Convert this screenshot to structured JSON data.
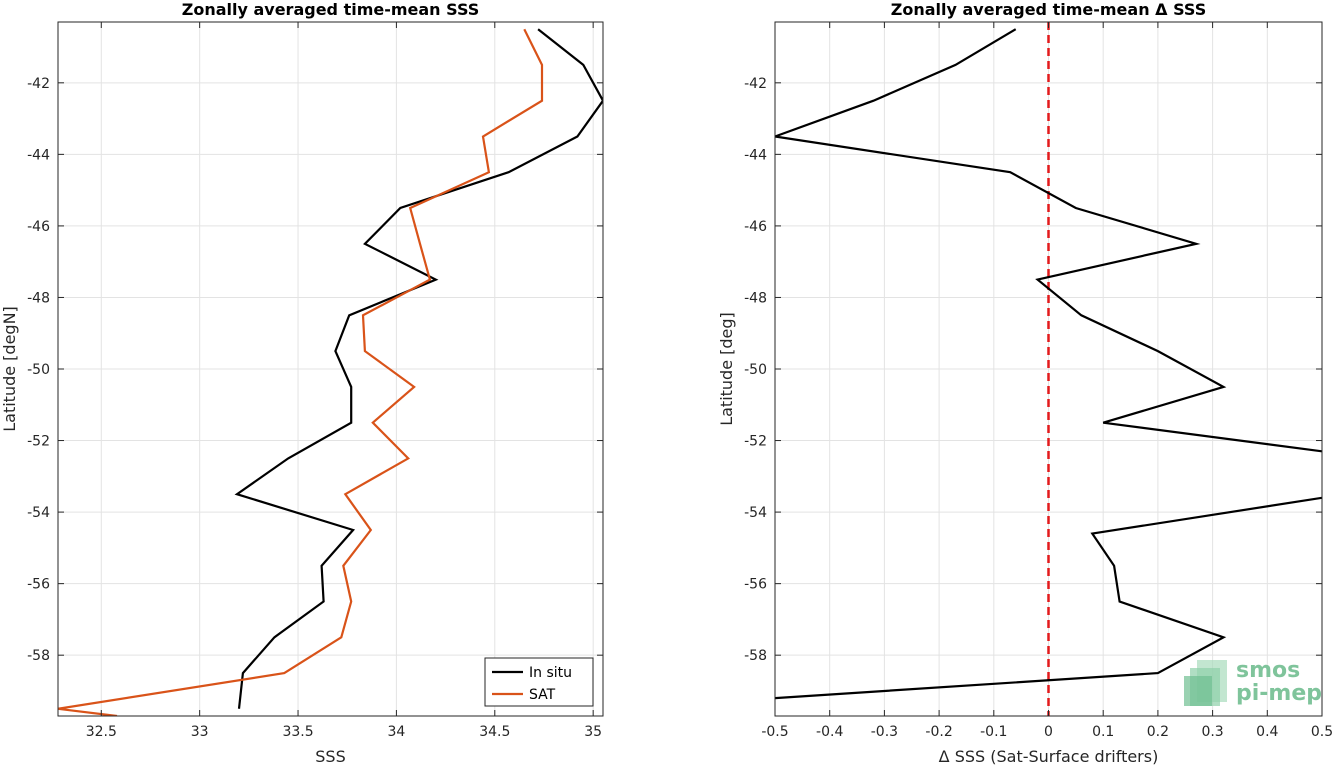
{
  "chart_data": [
    {
      "type": "line",
      "title": "Zonally averaged time-mean SSS",
      "xlabel": "SSS",
      "ylabel": "Latitude [degN]",
      "xlim": [
        32.28,
        35.05
      ],
      "ylim": [
        -59.7,
        -40.3
      ],
      "xticks": [
        32.5,
        33,
        33.5,
        34,
        34.5,
        35
      ],
      "xtick_labels": [
        "32.5",
        "33",
        "33.5",
        "34",
        "34.5",
        "35"
      ],
      "yticks": [
        -58,
        -56,
        -54,
        -52,
        -50,
        -48,
        -46,
        -44,
        -42
      ],
      "ytick_labels": [
        "-58",
        "-56",
        "-54",
        "-52",
        "-50",
        "-48",
        "-46",
        "-44",
        "-42"
      ],
      "grid": true,
      "legend": {
        "placement": "bottom-right"
      },
      "series": [
        {
          "name": "In situ",
          "color": "#000000",
          "points": [
            [
              34.72,
              -40.5
            ],
            [
              34.95,
              -41.5
            ],
            [
              35.05,
              -42.5
            ],
            [
              34.92,
              -43.5
            ],
            [
              34.57,
              -44.5
            ],
            [
              34.02,
              -45.5
            ],
            [
              33.84,
              -46.5
            ],
            [
              34.2,
              -47.5
            ],
            [
              33.76,
              -48.5
            ],
            [
              33.69,
              -49.5
            ],
            [
              33.77,
              -50.5
            ],
            [
              33.77,
              -51.5
            ],
            [
              33.45,
              -52.5
            ],
            [
              33.19,
              -53.5
            ],
            [
              33.78,
              -54.5
            ],
            [
              33.62,
              -55.5
            ],
            [
              33.63,
              -56.5
            ],
            [
              33.38,
              -57.5
            ],
            [
              33.22,
              -58.5
            ],
            [
              33.2,
              -59.5
            ]
          ]
        },
        {
          "name": "SAT",
          "color": "#d95319",
          "points": [
            [
              34.65,
              -40.5
            ],
            [
              34.74,
              -41.5
            ],
            [
              34.74,
              -42.5
            ],
            [
              34.44,
              -43.5
            ],
            [
              34.47,
              -44.5
            ],
            [
              34.07,
              -45.5
            ],
            [
              34.12,
              -46.5
            ],
            [
              34.17,
              -47.5
            ],
            [
              33.83,
              -48.5
            ],
            [
              33.84,
              -49.5
            ],
            [
              34.09,
              -50.5
            ],
            [
              33.88,
              -51.5
            ],
            [
              34.06,
              -52.5
            ],
            [
              33.74,
              -53.5
            ],
            [
              33.87,
              -54.5
            ],
            [
              33.73,
              -55.5
            ],
            [
              33.77,
              -56.5
            ],
            [
              33.72,
              -57.5
            ],
            [
              33.43,
              -58.5
            ],
            [
              32.28,
              -59.5
            ],
            [
              32.58,
              -59.7
            ]
          ]
        }
      ]
    },
    {
      "type": "line",
      "title": "Zonally averaged time-mean Δ SSS",
      "xlabel": "Δ SSS (Sat-Surface drifters)",
      "ylabel": "Latitude [deg]",
      "xlim": [
        -0.5,
        0.5
      ],
      "ylim": [
        -59.7,
        -40.3
      ],
      "xticks": [
        -0.5,
        -0.4,
        -0.3,
        -0.2,
        -0.1,
        0,
        0.1,
        0.2,
        0.3,
        0.4,
        0.5
      ],
      "xtick_labels": [
        "-0.5",
        "-0.4",
        "-0.3",
        "-0.2",
        "-0.1",
        "0",
        "0.1",
        "0.2",
        "0.3",
        "0.4",
        "0.5"
      ],
      "yticks": [
        -58,
        -56,
        -54,
        -52,
        -50,
        -48,
        -46,
        -44,
        -42
      ],
      "ytick_labels": [
        "-58",
        "-56",
        "-54",
        "-52",
        "-50",
        "-48",
        "-46",
        "-44",
        "-42"
      ],
      "grid": true,
      "reference_line": {
        "x": 0,
        "color": "#e31a1c",
        "style": "dashed"
      },
      "series": [
        {
          "color": "#000000",
          "points": [
            [
              -0.06,
              -40.5
            ],
            [
              -0.17,
              -41.5
            ],
            [
              -0.32,
              -42.5
            ],
            [
              -0.5,
              -43.5
            ],
            [
              -0.07,
              -44.5
            ],
            [
              0.05,
              -45.5
            ],
            [
              0.27,
              -46.5
            ],
            [
              -0.02,
              -47.5
            ],
            [
              0.06,
              -48.5
            ],
            [
              0.2,
              -49.5
            ],
            [
              0.32,
              -50.5
            ],
            [
              0.1,
              -51.5
            ],
            [
              0.5,
              -52.3
            ]
          ]
        },
        {
          "color": "#000000",
          "points": [
            [
              0.5,
              -53.6
            ],
            [
              0.08,
              -54.6
            ],
            [
              0.12,
              -55.5
            ],
            [
              0.13,
              -56.5
            ],
            [
              0.32,
              -57.5
            ],
            [
              0.2,
              -58.5
            ],
            [
              -0.5,
              -59.2
            ]
          ]
        }
      ]
    }
  ],
  "logo": {
    "line1": "smos",
    "line2": "pi-mep"
  }
}
